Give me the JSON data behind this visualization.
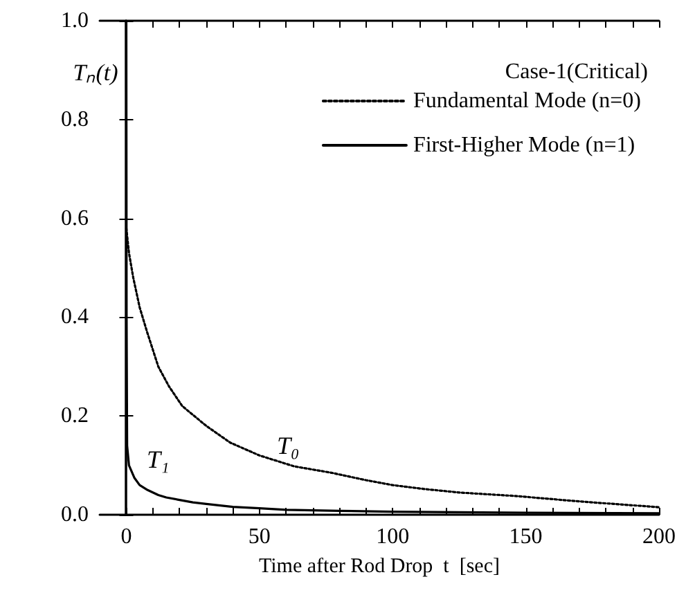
{
  "chart_data": {
    "type": "line",
    "xlabel": "Time after Rod Drop  t  [sec]",
    "ylabel": "Tₙ(t)",
    "xlim": [
      -10,
      200
    ],
    "ylim": [
      0,
      1
    ],
    "xticks": [
      0,
      {
        "value": 10,
        "label": null
      },
      {
        "value": 20,
        "label": null
      },
      {
        "value": 30,
        "label": null
      },
      {
        "value": 40,
        "label": null
      },
      50,
      {
        "value": 60,
        "label": null
      },
      {
        "value": 70,
        "label": null
      },
      {
        "value": 80,
        "label": null
      },
      {
        "value": 90,
        "label": null
      },
      100,
      {
        "value": 110,
        "label": null
      },
      {
        "value": 120,
        "label": null
      },
      {
        "value": 130,
        "label": null
      },
      {
        "value": 140,
        "label": null
      },
      150,
      {
        "value": 160,
        "label": null
      },
      {
        "value": 170,
        "label": null
      },
      {
        "value": 180,
        "label": null
      },
      {
        "value": 190,
        "label": null
      },
      200
    ],
    "yticks": [
      {
        "value": 0,
        "label": "0.0"
      },
      0.2,
      0.4,
      0.6,
      0.8,
      {
        "value": 1,
        "label": "1.0"
      }
    ],
    "legend": "top right",
    "grid": false,
    "marker": "none",
    "annotations": [
      "Case-1(Critical)",
      "T₀",
      "T₁"
    ],
    "series": [
      {
        "name": "Fundamental Mode (n=0)",
        "color": "#000000",
        "line_style": "dotted",
        "x": [
          0,
          1,
          2.6,
          5,
          7.8,
          12,
          16,
          21,
          30,
          39,
          50,
          63,
          77,
          90,
          100,
          112,
          125,
          146,
          170,
          198,
          200
        ],
        "values": [
          0.58,
          0.53,
          0.48,
          0.42,
          0.37,
          0.3,
          0.26,
          0.22,
          0.18,
          0.146,
          0.12,
          0.098,
          0.085,
          0.07,
          0.06,
          0.052,
          0.045,
          0.038,
          0.027,
          0.016,
          0.015
        ]
      },
      {
        "name": "First-Higher Mode (n=1)",
        "color": "#000000",
        "line_style": "solid",
        "x": [
          0,
          0.1,
          0.3,
          1,
          3,
          5,
          8,
          12,
          15,
          20,
          25,
          30,
          40,
          50,
          60,
          80,
          100,
          150,
          200
        ],
        "values": [
          1,
          0.4,
          0.14,
          0.1,
          0.075,
          0.06,
          0.05,
          0.04,
          0.035,
          0.03,
          0.025,
          0.022,
          0.016,
          0.013,
          0.01,
          0.008,
          0.006,
          0.004,
          0.003
        ]
      }
    ]
  }
}
